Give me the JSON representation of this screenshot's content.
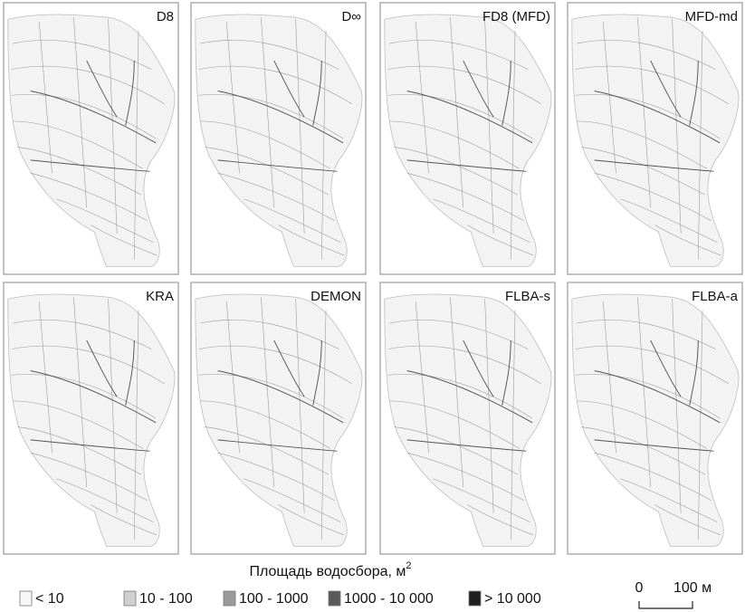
{
  "panels": [
    {
      "label": "D8"
    },
    {
      "label": "D∞"
    },
    {
      "label": "FD8 (MFD)"
    },
    {
      "label": "MFD-md"
    },
    {
      "label": "KRA"
    },
    {
      "label": "DEMON"
    },
    {
      "label": "FLBA-s"
    },
    {
      "label": "FLBA-a"
    }
  ],
  "legend": {
    "title": "Площадь водосбора, м",
    "title_superscript": "2",
    "items": [
      {
        "label": "< 10"
      },
      {
        "label": "10 - 100"
      },
      {
        "label": "100 - 1000"
      },
      {
        "label": "1000 - 10 000"
      },
      {
        "label": "> 10 000"
      }
    ]
  },
  "scale_bar": {
    "start_label": "0",
    "end_label": "100 м"
  }
}
